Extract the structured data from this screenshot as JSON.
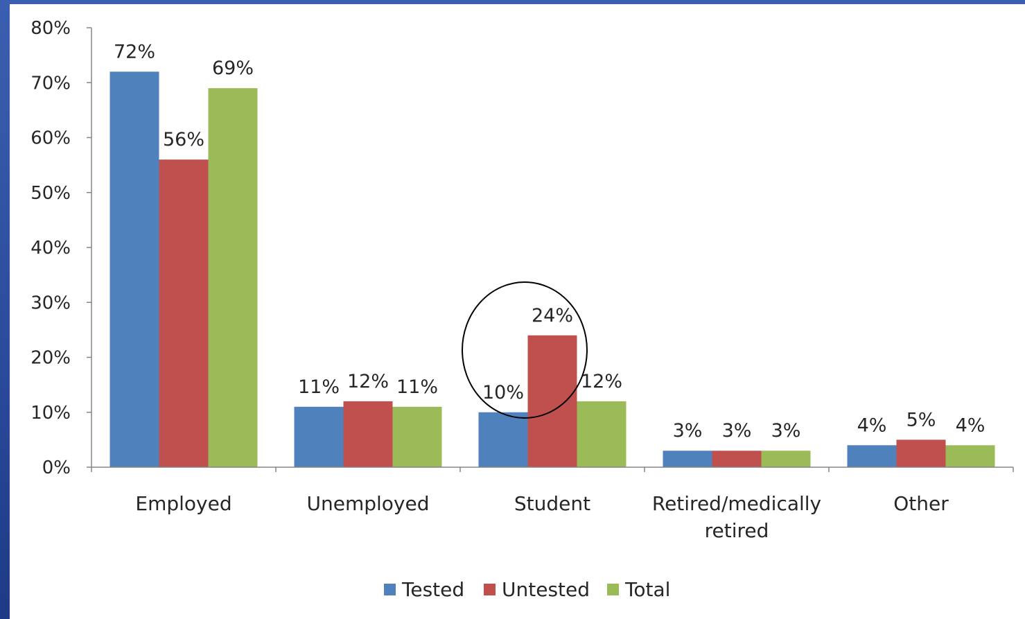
{
  "colors": {
    "tested": "#4f81bd",
    "untested": "#c0504d",
    "total": "#9bbb59",
    "axis": "#868686",
    "text": "#262626"
  },
  "chart_data": {
    "type": "bar",
    "categories": [
      "Employed",
      "Unemployed",
      "Student",
      "Retired/medically retired",
      "Other"
    ],
    "category_lines": [
      [
        "Employed"
      ],
      [
        "Unemployed"
      ],
      [
        "Student"
      ],
      [
        "Retired/medically",
        "retired"
      ],
      [
        "Other"
      ]
    ],
    "series": [
      {
        "name": "Tested",
        "values": [
          72,
          11,
          10,
          3,
          4
        ],
        "labels": [
          "72%",
          "11%",
          "10%",
          "3%",
          "4%"
        ]
      },
      {
        "name": "Untested",
        "values": [
          56,
          12,
          24,
          3,
          5
        ],
        "labels": [
          "56%",
          "12%",
          "24%",
          "3%",
          "5%"
        ]
      },
      {
        "name": "Total",
        "values": [
          69,
          11,
          12,
          3,
          4
        ],
        "labels": [
          "69%",
          "11%",
          "12%",
          "3%",
          "4%"
        ]
      }
    ],
    "ylim": [
      0,
      80
    ],
    "y_ticks": [
      "0%",
      "10%",
      "20%",
      "30%",
      "40%",
      "50%",
      "60%",
      "70%",
      "80%"
    ],
    "grid": false,
    "legend_position": "bottom",
    "annotation": "circle highlighting the Student category"
  }
}
